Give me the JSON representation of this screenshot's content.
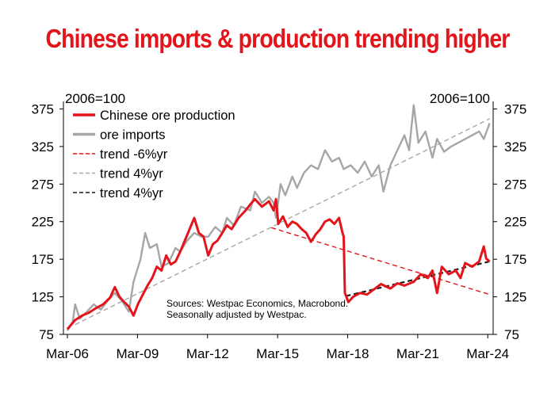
{
  "colors": {
    "title": "#e4141b",
    "production": "#e4141b",
    "imports": "#a6a6a6",
    "trend_neg": "#e4141b",
    "trend_pos_grey": "#a6a6a6",
    "trend_pos_black": "#1a1a1a",
    "axis": "#000000"
  },
  "chart_data": {
    "type": "line",
    "title": "Chinese imports & production trending higher",
    "left_unit_label": "2006=100",
    "right_unit_label": "2006=100",
    "ylim": [
      75,
      385
    ],
    "yticks": [
      75,
      125,
      175,
      225,
      275,
      325,
      375
    ],
    "xlim": [
      2006.0,
      2024.4
    ],
    "xticks": [
      {
        "value": 2006.17,
        "label": "Mar-06"
      },
      {
        "value": 2009.17,
        "label": "Mar-09"
      },
      {
        "value": 2012.17,
        "label": "Mar-12"
      },
      {
        "value": 2015.17,
        "label": "Mar-15"
      },
      {
        "value": 2018.17,
        "label": "Mar-18"
      },
      {
        "value": 2021.17,
        "label": "Mar-21"
      },
      {
        "value": 2024.17,
        "label": "Mar-24"
      }
    ],
    "annotation": [
      "Sources: Westpac Economics, Macrobond.",
      "Seasonally adjusted by Westpac."
    ],
    "series": [
      {
        "name": "Chinese ore production",
        "style": "solid",
        "color_key": "production",
        "points": [
          [
            2006.17,
            82
          ],
          [
            2006.5,
            94
          ],
          [
            2006.8,
            100
          ],
          [
            2007.1,
            104
          ],
          [
            2007.4,
            110
          ],
          [
            2007.7,
            115
          ],
          [
            2008.0,
            124
          ],
          [
            2008.2,
            138
          ],
          [
            2008.4,
            125
          ],
          [
            2008.6,
            118
          ],
          [
            2008.8,
            112
          ],
          [
            2009.0,
            100
          ],
          [
            2009.2,
            116
          ],
          [
            2009.4,
            128
          ],
          [
            2009.6,
            140
          ],
          [
            2009.8,
            150
          ],
          [
            2010.0,
            165
          ],
          [
            2010.2,
            160
          ],
          [
            2010.4,
            180
          ],
          [
            2010.6,
            168
          ],
          [
            2010.8,
            172
          ],
          [
            2011.0,
            185
          ],
          [
            2011.2,
            200
          ],
          [
            2011.4,
            215
          ],
          [
            2011.6,
            230
          ],
          [
            2011.8,
            210
          ],
          [
            2012.0,
            205
          ],
          [
            2012.2,
            180
          ],
          [
            2012.4,
            195
          ],
          [
            2012.6,
            200
          ],
          [
            2012.8,
            210
          ],
          [
            2013.0,
            220
          ],
          [
            2013.2,
            215
          ],
          [
            2013.5,
            230
          ],
          [
            2013.8,
            240
          ],
          [
            2014.0,
            248
          ],
          [
            2014.2,
            255
          ],
          [
            2014.5,
            245
          ],
          [
            2014.8,
            252
          ],
          [
            2015.0,
            240
          ],
          [
            2015.1,
            255
          ],
          [
            2015.2,
            222
          ],
          [
            2015.4,
            232
          ],
          [
            2015.6,
            218
          ],
          [
            2015.8,
            225
          ],
          [
            2016.0,
            222
          ],
          [
            2016.2,
            215
          ],
          [
            2016.4,
            210
          ],
          [
            2016.6,
            198
          ],
          [
            2016.8,
            208
          ],
          [
            2017.0,
            215
          ],
          [
            2017.2,
            225
          ],
          [
            2017.4,
            228
          ],
          [
            2017.6,
            222
          ],
          [
            2017.8,
            230
          ],
          [
            2017.95,
            210
          ],
          [
            2018.0,
            205
          ],
          [
            2018.05,
            130
          ],
          [
            2018.2,
            118
          ],
          [
            2018.4,
            125
          ],
          [
            2018.7,
            130
          ],
          [
            2019.0,
            128
          ],
          [
            2019.3,
            135
          ],
          [
            2019.6,
            142
          ],
          [
            2020.0,
            136
          ],
          [
            2020.3,
            143
          ],
          [
            2020.6,
            140
          ],
          [
            2021.0,
            145
          ],
          [
            2021.3,
            155
          ],
          [
            2021.6,
            150
          ],
          [
            2021.8,
            160
          ],
          [
            2022.0,
            130
          ],
          [
            2022.2,
            165
          ],
          [
            2022.5,
            155
          ],
          [
            2022.8,
            160
          ],
          [
            2023.0,
            150
          ],
          [
            2023.2,
            170
          ],
          [
            2023.5,
            165
          ],
          [
            2023.8,
            172
          ],
          [
            2024.0,
            192
          ],
          [
            2024.1,
            176
          ],
          [
            2024.25,
            172
          ]
        ]
      },
      {
        "name": "ore imports",
        "style": "solid",
        "color_key": "imports",
        "points": [
          [
            2006.17,
            80
          ],
          [
            2006.4,
            92
          ],
          [
            2006.5,
            115
          ],
          [
            2006.7,
            96
          ],
          [
            2007.0,
            105
          ],
          [
            2007.3,
            115
          ],
          [
            2007.6,
            108
          ],
          [
            2007.9,
            120
          ],
          [
            2008.2,
            130
          ],
          [
            2008.5,
            120
          ],
          [
            2008.8,
            105
          ],
          [
            2009.0,
            145
          ],
          [
            2009.3,
            175
          ],
          [
            2009.5,
            210
          ],
          [
            2009.7,
            190
          ],
          [
            2010.0,
            195
          ],
          [
            2010.2,
            165
          ],
          [
            2010.5,
            170
          ],
          [
            2010.8,
            190
          ],
          [
            2011.0,
            185
          ],
          [
            2011.3,
            200
          ],
          [
            2011.6,
            210
          ],
          [
            2011.9,
            205
          ],
          [
            2012.2,
            205
          ],
          [
            2012.5,
            218
          ],
          [
            2012.8,
            210
          ],
          [
            2013.0,
            230
          ],
          [
            2013.3,
            220
          ],
          [
            2013.6,
            245
          ],
          [
            2014.0,
            240
          ],
          [
            2014.2,
            265
          ],
          [
            2014.5,
            250
          ],
          [
            2014.8,
            258
          ],
          [
            2015.0,
            250
          ],
          [
            2015.1,
            230
          ],
          [
            2015.3,
            275
          ],
          [
            2015.5,
            260
          ],
          [
            2015.8,
            285
          ],
          [
            2016.0,
            270
          ],
          [
            2016.3,
            290
          ],
          [
            2016.6,
            300
          ],
          [
            2016.9,
            295
          ],
          [
            2017.2,
            320
          ],
          [
            2017.5,
            305
          ],
          [
            2017.8,
            310
          ],
          [
            2018.0,
            295
          ],
          [
            2018.3,
            300
          ],
          [
            2018.6,
            290
          ],
          [
            2018.9,
            305
          ],
          [
            2019.2,
            285
          ],
          [
            2019.5,
            300
          ],
          [
            2019.7,
            265
          ],
          [
            2020.0,
            300
          ],
          [
            2020.3,
            320
          ],
          [
            2020.6,
            340
          ],
          [
            2020.8,
            320
          ],
          [
            2021.0,
            380
          ],
          [
            2021.2,
            330
          ],
          [
            2021.5,
            345
          ],
          [
            2021.8,
            310
          ],
          [
            2022.0,
            335
          ],
          [
            2022.3,
            318
          ],
          [
            2022.6,
            325
          ],
          [
            2022.9,
            330
          ],
          [
            2023.2,
            335
          ],
          [
            2023.5,
            340
          ],
          [
            2023.8,
            345
          ],
          [
            2024.0,
            335
          ],
          [
            2024.25,
            356
          ]
        ]
      },
      {
        "name": "trend -6%yr",
        "style": "dashed",
        "color_key": "trend_neg",
        "points": [
          [
            2014.9,
            217
          ],
          [
            2024.25,
            128
          ]
        ]
      },
      {
        "name": "trend 4%yr",
        "style": "dashed",
        "color_key": "trend_pos_grey",
        "points": [
          [
            2006.5,
            88
          ],
          [
            2024.25,
            362
          ]
        ]
      },
      {
        "name": "trend 4%yr",
        "style": "dashed",
        "color_key": "trend_pos_black",
        "points": [
          [
            2018.1,
            126
          ],
          [
            2024.25,
            172
          ]
        ]
      }
    ]
  }
}
